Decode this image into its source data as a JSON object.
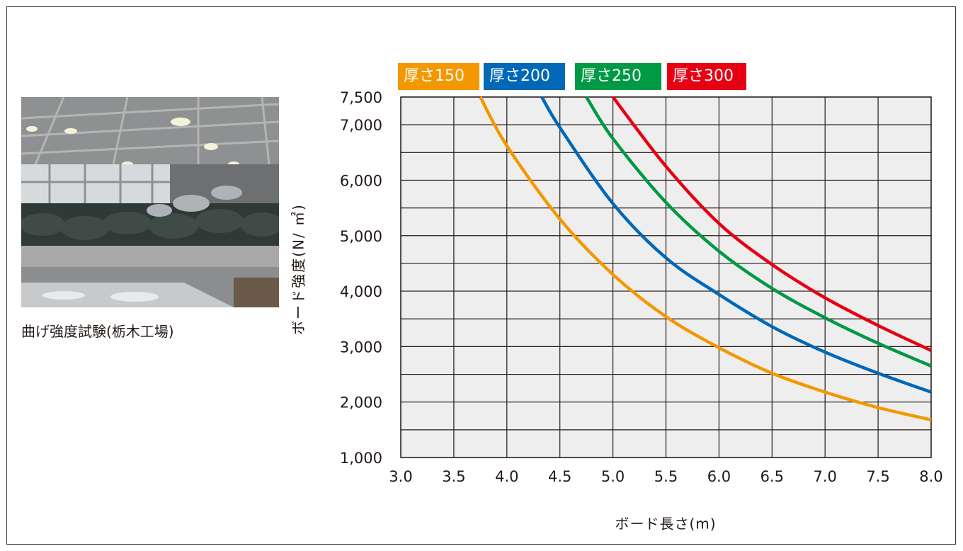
{
  "photo": {
    "caption": "曲げ強度試験(栃木工場)"
  },
  "chart_data": {
    "type": "line",
    "title": "",
    "xlabel": "ボード長さ(m)",
    "ylabel": "ボード強度(N/ ㎡)",
    "xlim": [
      3.0,
      8.0
    ],
    "ylim": [
      1000,
      7500
    ],
    "x_ticks": [
      3.0,
      3.5,
      4.0,
      4.5,
      5.0,
      5.5,
      6.0,
      6.5,
      7.0,
      7.5,
      8.0
    ],
    "x_tick_labels": [
      "3.0",
      "3.5",
      "4.0",
      "4.5",
      "5.0",
      "5.5",
      "6.0",
      "6.5",
      "7.0",
      "7.5",
      "8.0"
    ],
    "y_ticks": [
      1000,
      2000,
      3000,
      4000,
      5000,
      6000,
      7000,
      7500
    ],
    "y_tick_labels": [
      "1,000",
      "2,000",
      "3,000",
      "4,000",
      "5,000",
      "6,000",
      "7,000",
      "7,500"
    ],
    "grid": true,
    "legend_position": "top-left",
    "series": [
      {
        "name": "厚さ150",
        "color": "#f39800",
        "x": [
          3.75,
          4.0,
          4.5,
          5.0,
          5.5,
          6.0,
          6.5,
          7.0,
          7.5,
          8.0
        ],
        "y": [
          7500,
          6620,
          5300,
          4300,
          3540,
          2980,
          2520,
          2180,
          1900,
          1680
        ]
      },
      {
        "name": "厚さ200",
        "color": "#0068b7",
        "x": [
          4.33,
          4.5,
          5.0,
          5.5,
          6.0,
          6.5,
          7.0,
          7.5,
          8.0
        ],
        "y": [
          7500,
          6950,
          5580,
          4600,
          3940,
          3360,
          2900,
          2520,
          2180
        ]
      },
      {
        "name": "厚さ250",
        "color": "#009944",
        "x": [
          4.75,
          5.0,
          5.5,
          6.0,
          6.5,
          7.0,
          7.5,
          8.0
        ],
        "y": [
          7500,
          6750,
          5600,
          4720,
          4050,
          3520,
          3060,
          2650
        ]
      },
      {
        "name": "厚さ300",
        "color": "#e60012",
        "x": [
          5.0,
          5.5,
          6.0,
          6.5,
          7.0,
          7.5,
          8.0
        ],
        "y": [
          7500,
          6250,
          5220,
          4480,
          3880,
          3380,
          2930
        ]
      }
    ]
  }
}
